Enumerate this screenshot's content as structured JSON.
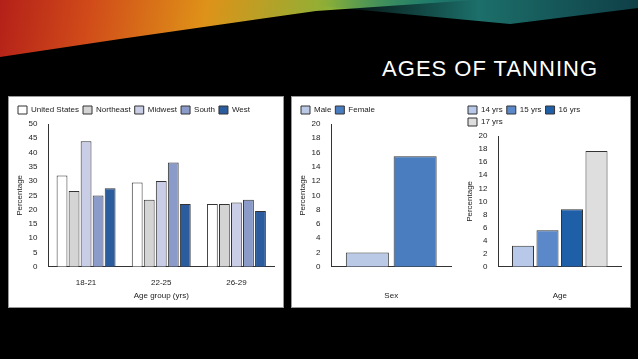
{
  "title": "AGES OF TANNING",
  "chart_data": [
    {
      "type": "bar",
      "categories": [
        "18-21",
        "22-25",
        "26-29"
      ],
      "xlabel": "Age group (yrs)",
      "ylabel": "Percentage",
      "series": [
        {
          "name": "United States",
          "color": "#ffffff",
          "values": [
            32,
            29.5,
            22
          ]
        },
        {
          "name": "Northeast",
          "color": "#d4d4d4",
          "values": [
            26.5,
            23.5,
            22
          ]
        },
        {
          "name": "Midwest",
          "color": "#c9cde6",
          "values": [
            44,
            30,
            22.5
          ]
        },
        {
          "name": "South",
          "color": "#8a9bc9",
          "values": [
            25,
            36.5,
            23.5
          ]
        },
        {
          "name": "West",
          "color": "#2b5c9e",
          "values": [
            27.5,
            22,
            19.5
          ]
        }
      ],
      "ylim": [
        0,
        50
      ],
      "yticks": [
        0,
        5,
        10,
        15,
        20,
        25,
        30,
        35,
        40,
        45,
        50
      ],
      "grid": false,
      "legend": "top-left"
    },
    {
      "type": "bar",
      "categories": [
        null
      ],
      "xlabel": "Sex",
      "ylabel": "Percentage",
      "series": [
        {
          "name": "Male",
          "color": "#b9c9e6",
          "values": [
            2
          ]
        },
        {
          "name": "Female",
          "color": "#4a7cc0",
          "values": [
            15.5
          ]
        }
      ],
      "ylim": [
        0,
        20
      ],
      "yticks": [
        0,
        2,
        4,
        6,
        8,
        10,
        12,
        14,
        16,
        18,
        20
      ],
      "grid": false,
      "legend": "top-left"
    },
    {
      "type": "bar",
      "categories": [
        null
      ],
      "xlabel": "Age",
      "ylabel": "Percentage",
      "series": [
        {
          "name": "14 yrs",
          "color": "#b8c8e8",
          "values": [
            3.2
          ]
        },
        {
          "name": "15 yrs",
          "color": "#5b88c8",
          "values": [
            5.6
          ]
        },
        {
          "name": "16 yrs",
          "color": "#1f5fa8",
          "values": [
            8.8
          ]
        },
        {
          "name": "17 yrs",
          "color": "#dedede",
          "values": [
            17.7
          ]
        }
      ],
      "ylim": [
        0,
        20
      ],
      "yticks": [
        0,
        2,
        4,
        6,
        8,
        10,
        12,
        14,
        16,
        18,
        20
      ],
      "grid": false,
      "legend": "top-left"
    }
  ]
}
